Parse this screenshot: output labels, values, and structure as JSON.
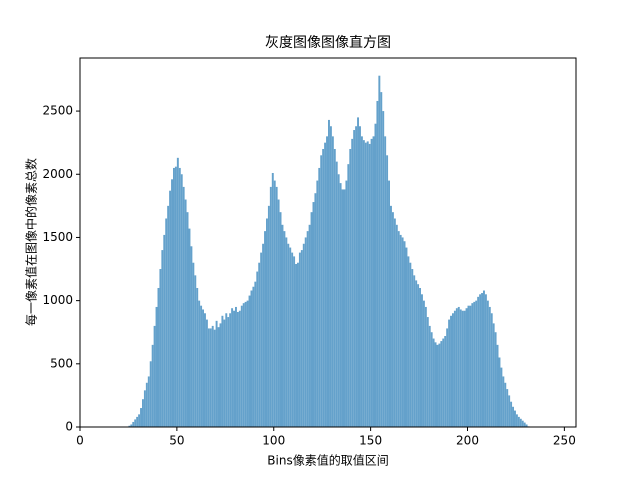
{
  "chart_data": {
    "type": "histogram",
    "title": "灰度图像图像直方图",
    "x_label": "Bins像素值的取值区间",
    "y_label": "每一像素值在图像中的像素总数",
    "color": "#64a1cb",
    "xlim": [
      0,
      256
    ],
    "xticks": [
      0,
      50,
      100,
      150,
      200,
      250
    ],
    "ylim": [
      0,
      2920
    ],
    "yticks": [
      0,
      500,
      1000,
      1500,
      2000,
      2500
    ],
    "bins": [
      25,
      26,
      27,
      28,
      29,
      30,
      31,
      32,
      33,
      34,
      35,
      36,
      37,
      38,
      39,
      40,
      41,
      42,
      43,
      44,
      45,
      46,
      47,
      48,
      49,
      50,
      51,
      52,
      53,
      54,
      55,
      56,
      57,
      58,
      59,
      60,
      61,
      62,
      63,
      64,
      65,
      66,
      67,
      68,
      69,
      70,
      71,
      72,
      73,
      74,
      75,
      76,
      77,
      78,
      79,
      80,
      81,
      82,
      83,
      84,
      85,
      86,
      87,
      88,
      89,
      90,
      91,
      92,
      93,
      94,
      95,
      96,
      97,
      98,
      99,
      100,
      101,
      102,
      103,
      104,
      105,
      106,
      107,
      108,
      109,
      110,
      111,
      112,
      113,
      114,
      115,
      116,
      117,
      118,
      119,
      120,
      121,
      122,
      123,
      124,
      125,
      126,
      127,
      128,
      129,
      130,
      131,
      132,
      133,
      134,
      135,
      136,
      137,
      138,
      139,
      140,
      141,
      142,
      143,
      144,
      145,
      146,
      147,
      148,
      149,
      150,
      151,
      152,
      153,
      154,
      155,
      156,
      157,
      158,
      159,
      160,
      161,
      162,
      163,
      164,
      165,
      166,
      167,
      168,
      169,
      170,
      171,
      172,
      173,
      174,
      175,
      176,
      177,
      178,
      179,
      180,
      181,
      182,
      183,
      184,
      185,
      186,
      187,
      188,
      189,
      190,
      191,
      192,
      193,
      194,
      195,
      196,
      197,
      198,
      199,
      200,
      201,
      202,
      203,
      204,
      205,
      206,
      207,
      208,
      209,
      210,
      211,
      212,
      213,
      214,
      215,
      216,
      217,
      218,
      219,
      220,
      221,
      222,
      223,
      224,
      225,
      226,
      227,
      228,
      229,
      230,
      231,
      232
    ],
    "values": [
      10,
      20,
      40,
      60,
      80,
      100,
      150,
      220,
      290,
      350,
      400,
      520,
      650,
      800,
      950,
      1100,
      1250,
      1400,
      1520,
      1650,
      1750,
      1870,
      1960,
      2050,
      2060,
      2130,
      2050,
      2000,
      1900,
      1800,
      1700,
      1570,
      1430,
      1300,
      1200,
      1100,
      1000,
      960,
      930,
      900,
      850,
      780,
      780,
      800,
      770,
      840,
      790,
      820,
      880,
      850,
      900,
      870,
      900,
      940,
      920,
      950,
      910,
      920,
      960,
      980,
      990,
      1000,
      1040,
      1080,
      1110,
      1150,
      1230,
      1300,
      1380,
      1450,
      1550,
      1650,
      1750,
      1900,
      2010,
      1950,
      1900,
      1800,
      1700,
      1600,
      1550,
      1500,
      1450,
      1420,
      1380,
      1350,
      1290,
      1300,
      1380,
      1400,
      1450,
      1500,
      1550,
      1600,
      1700,
      1780,
      1850,
      1950,
      2050,
      2150,
      2200,
      2250,
      2300,
      2430,
      2380,
      2300,
      2200,
      2100,
      2000,
      1930,
      1880,
      1880,
      1950,
      2080,
      2200,
      2280,
      2350,
      2380,
      2450,
      2380,
      2300,
      2270,
      2250,
      2260,
      2240,
      2280,
      2300,
      2400,
      2580,
      2780,
      2650,
      2500,
      2300,
      2150,
      1950,
      1750,
      1700,
      1650,
      1600,
      1550,
      1520,
      1500,
      1470,
      1420,
      1350,
      1300,
      1250,
      1200,
      1160,
      1130,
      1100,
      1050,
      1000,
      950,
      870,
      800,
      750,
      700,
      670,
      650,
      660,
      680,
      700,
      720,
      780,
      850,
      880,
      900,
      920,
      940,
      950,
      930,
      920,
      920,
      940,
      960,
      960,
      980,
      990,
      1000,
      1030,
      1050,
      1060,
      1080,
      1050,
      1000,
      950,
      900,
      820,
      750,
      650,
      550,
      470,
      400,
      350,
      300,
      250,
      200,
      160,
      130,
      100,
      80,
      65,
      50,
      35,
      20,
      5
    ]
  }
}
